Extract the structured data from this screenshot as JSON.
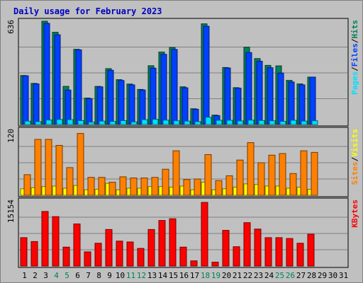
{
  "colors": {
    "background": "#c0c0c0",
    "panel": "#c0c0c0",
    "title": "#0000c0",
    "hits": "#00805c",
    "files": "#0040ff",
    "pages": "#00e0ff",
    "visits": "#ffff00",
    "sites": "#ff8000",
    "kbytes": "#ff0000",
    "weekend_label": "#00805c",
    "day_label": "#000000"
  },
  "chart_data": {
    "type": "bar",
    "title": "Daily usage for February 2023",
    "days": [
      "1",
      "2",
      "3",
      "4",
      "5",
      "6",
      "7",
      "8",
      "9",
      "10",
      "11",
      "12",
      "13",
      "14",
      "15",
      "16",
      "17",
      "18",
      "19",
      "20",
      "21",
      "22",
      "23",
      "24",
      "25",
      "26",
      "27",
      "28",
      "29",
      "30",
      "31"
    ],
    "weekend_days": [
      "4",
      "5",
      "11",
      "12",
      "18",
      "19",
      "25",
      "26"
    ],
    "panels": [
      {
        "id": "hits_files_pages",
        "max_label": "636",
        "max": 636,
        "legend": [
          {
            "text": "Pages",
            "color_key": "pages"
          },
          {
            "text": "/",
            "color_key": "day_label"
          },
          {
            "text": "Files",
            "color_key": "files"
          },
          {
            "text": "/",
            "color_key": "day_label"
          },
          {
            "text": "Hits",
            "color_key": "hits"
          }
        ],
        "series": [
          {
            "name": "Hits",
            "color_key": "hits",
            "values": [
              302,
              253,
              636,
              568,
              235,
              463,
              163,
              235,
              344,
              276,
              249,
              216,
              362,
              446,
              474,
              232,
              97,
              620,
              58,
              351,
              227,
              476,
              406,
              364,
              361,
              272,
              250,
              292
            ]
          },
          {
            "name": "Files",
            "color_key": "files",
            "values": [
              300,
              250,
              623,
              553,
              212,
              460,
              160,
              232,
              334,
              271,
              244,
              213,
              347,
              432,
              462,
              226,
              94,
              605,
              55,
              348,
              224,
              443,
              390,
              350,
              317,
              262,
              244,
              292
            ]
          },
          {
            "name": "Pages",
            "color_key": "pages",
            "values": [
              21,
              18,
              28,
              31,
              30,
              24,
              15,
              21,
              19,
              24,
              16,
              30,
              32,
              27,
              23,
              21,
              18,
              45,
              26,
              26,
              22,
              27,
              25,
              23,
              19,
              26,
              21,
              23
            ]
          }
        ]
      },
      {
        "id": "visits_sites",
        "max_label": "120",
        "max": 120,
        "legend": [
          {
            "text": "Sites",
            "color_key": "sites"
          },
          {
            "text": "/",
            "color_key": "day_label"
          },
          {
            "text": "Visits",
            "color_key": "visits"
          }
        ],
        "series": [
          {
            "name": "Visits",
            "color_key": "visits",
            "values": [
              12,
              14,
              16,
              17,
              13,
              18,
              10,
              11,
              22,
              10,
              13,
              13,
              16,
              16,
              15,
              17,
              10,
              24,
              10,
              12,
              15,
              21,
              20,
              17,
              17,
              13,
              15,
              11
            ]
          },
          {
            "name": "Sites",
            "color_key": "sites",
            "values": [
              38,
              103,
              103,
              92,
              51,
              114,
              33,
              33,
              24,
              34,
              32,
              32,
              33,
              48,
              82,
              29,
              30,
              75,
              27,
              36,
              65,
              97,
              60,
              74,
              77,
              40,
              82,
              79
            ]
          }
        ]
      },
      {
        "id": "kbytes",
        "max_label": "15154",
        "max": 15154,
        "legend": [
          {
            "text": "KBytes",
            "color_key": "kbytes"
          }
        ],
        "series": [
          {
            "name": "KBytes",
            "color_key": "kbytes",
            "values": [
              6600,
              5700,
              12700,
              11500,
              4400,
              9800,
              3300,
              5300,
              8500,
              5800,
              5600,
              4100,
              8500,
              10600,
              11000,
              4400,
              1200,
              14800,
              900,
              8300,
              4500,
              10100,
              8600,
              6600,
              6600,
              6400,
              5300,
              7400
            ]
          }
        ]
      }
    ]
  }
}
